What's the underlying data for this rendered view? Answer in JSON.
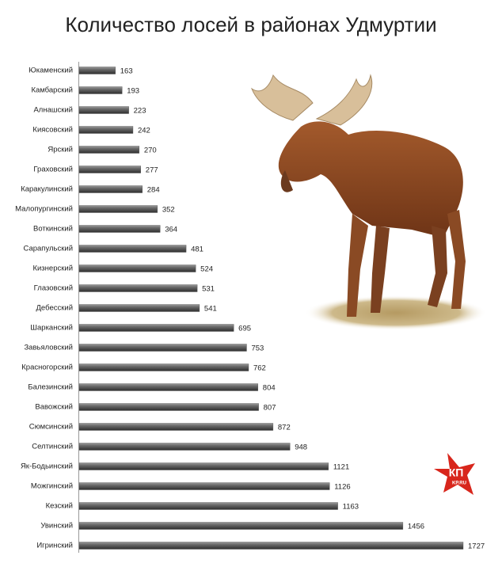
{
  "chart_data": {
    "type": "bar",
    "orientation": "horizontal",
    "title": "Количество лосей в районах Удмуртии",
    "categories": [
      "Юкаменский",
      "Камбарский",
      "Алнашский",
      "Киясовский",
      "Ярский",
      "Граховский",
      "Каракулинский",
      "Малопургинский",
      "Воткинский",
      "Сарапульский",
      "Кизнерский",
      "Глазовский",
      "Дебесский",
      "Шарканский",
      "Завьяловский",
      "Красногорский",
      "Балезинский",
      "Вавожский",
      "Сюмсинский",
      "Селтинский",
      "Як-Бодьинский",
      "Можгинский",
      "Кезский",
      "Увинский",
      "Игринский"
    ],
    "values": [
      163,
      193,
      223,
      242,
      270,
      277,
      284,
      352,
      364,
      481,
      524,
      531,
      541,
      695,
      753,
      762,
      804,
      807,
      872,
      948,
      1121,
      1126,
      1163,
      1456,
      1727
    ],
    "color": "#555555"
  },
  "logo": {
    "text": "КП",
    "subtext": "KP.RU"
  }
}
